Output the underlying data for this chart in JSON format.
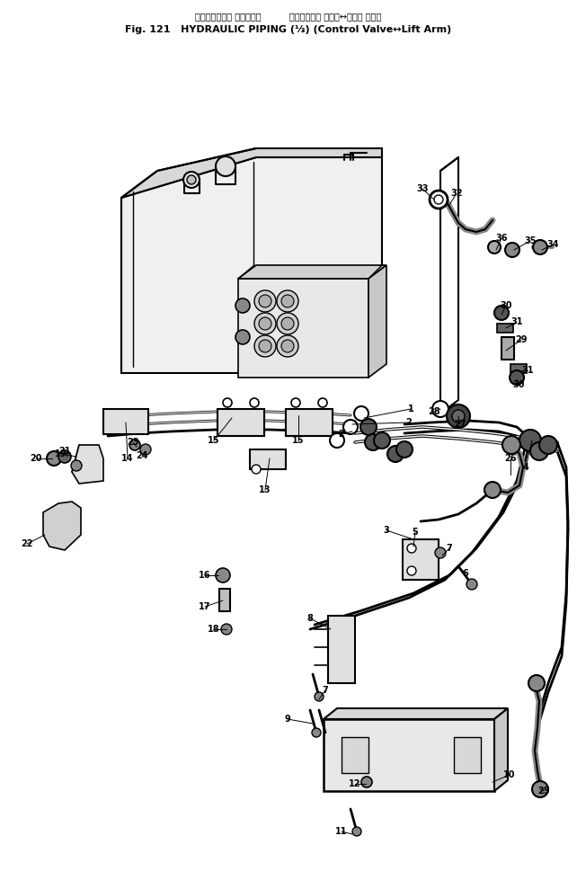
{
  "title_jp": "ハイドロリック パイピング          コントロール バルブ↔リフト アーム",
  "title_en": "Fig. 121   HYDRAULIC PIPING (⅓) (Control Valve↔Lift Arm)",
  "bg_color": "#ffffff",
  "lc": "#000000"
}
